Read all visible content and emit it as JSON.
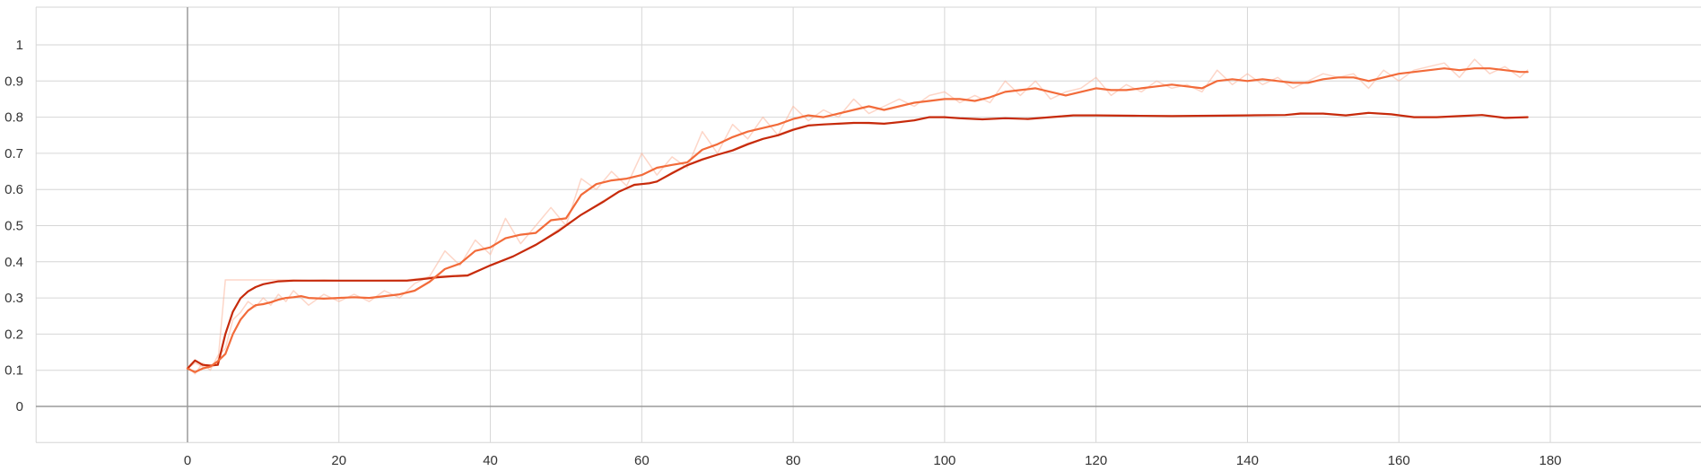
{
  "chart_data": {
    "type": "line",
    "title": "",
    "xlabel": "",
    "ylabel": "",
    "xlim": [
      -20,
      200
    ],
    "ylim": [
      -0.1,
      1.1
    ],
    "x_ticks": [
      "0",
      "20",
      "40",
      "60",
      "80",
      "100",
      "120",
      "140",
      "160",
      "180"
    ],
    "y_ticks": [
      "0",
      "0.1",
      "0.2",
      "0.3",
      "0.4",
      "0.5",
      "0.6",
      "0.7",
      "0.8",
      "0.9",
      "1"
    ],
    "grid": true,
    "legend": "none",
    "series": [
      {
        "color": "#c62a0b",
        "opacity": 1,
        "x": [
          0,
          1,
          2,
          3,
          4,
          5,
          6,
          7,
          8,
          9,
          10,
          11,
          12,
          14,
          16,
          18,
          20,
          25,
          29,
          31,
          33,
          35,
          37,
          40,
          43,
          46,
          49,
          52,
          55,
          57,
          59,
          61,
          62,
          64,
          66,
          68,
          70,
          72,
          74,
          76,
          78,
          80,
          82,
          84,
          86,
          88,
          90,
          92,
          94,
          96,
          98,
          100,
          102,
          105,
          108,
          111,
          114,
          117,
          120,
          125,
          130,
          135,
          140,
          145,
          147,
          150,
          153,
          156,
          159,
          162,
          165,
          168,
          171,
          174,
          177
        ],
        "y": [
          0.105,
          0.127,
          0.115,
          0.113,
          0.115,
          0.2,
          0.262,
          0.299,
          0.318,
          0.33,
          0.338,
          0.342,
          0.346,
          0.348,
          0.348,
          0.348,
          0.348,
          0.348,
          0.348,
          0.352,
          0.357,
          0.36,
          0.362,
          0.39,
          0.415,
          0.447,
          0.485,
          0.53,
          0.567,
          0.594,
          0.613,
          0.617,
          0.622,
          0.645,
          0.667,
          0.683,
          0.696,
          0.708,
          0.725,
          0.74,
          0.75,
          0.765,
          0.777,
          0.78,
          0.782,
          0.784,
          0.784,
          0.782,
          0.786,
          0.791,
          0.8,
          0.8,
          0.797,
          0.794,
          0.797,
          0.795,
          0.8,
          0.805,
          0.805,
          0.804,
          0.803,
          0.804,
          0.805,
          0.806,
          0.81,
          0.81,
          0.805,
          0.812,
          0.808,
          0.8,
          0.8,
          0.803,
          0.806,
          0.798,
          0.8
        ]
      },
      {
        "color": "#f26b3a",
        "opacity": 1,
        "x": [
          0,
          1,
          2,
          3,
          4,
          5,
          6,
          7,
          8,
          9,
          10,
          11,
          12,
          13,
          14,
          15,
          16,
          18,
          20,
          22,
          24,
          26,
          28,
          30,
          32,
          34,
          36,
          38,
          40,
          42,
          44,
          46,
          48,
          50,
          52,
          54,
          56,
          58,
          60,
          62,
          64,
          66,
          68,
          70,
          72,
          74,
          76,
          78,
          80,
          82,
          84,
          86,
          88,
          90,
          92,
          94,
          96,
          98,
          100,
          102,
          104,
          106,
          108,
          110,
          112,
          114,
          116,
          118,
          120,
          122,
          124,
          126,
          128,
          130,
          132,
          134,
          136,
          138,
          140,
          142,
          144,
          146,
          148,
          150,
          152,
          154,
          156,
          158,
          160,
          162,
          164,
          166,
          168,
          170,
          172,
          174,
          176,
          177
        ],
        "y": [
          0.105,
          0.095,
          0.105,
          0.11,
          0.125,
          0.145,
          0.2,
          0.24,
          0.265,
          0.28,
          0.283,
          0.288,
          0.295,
          0.3,
          0.302,
          0.305,
          0.3,
          0.298,
          0.3,
          0.302,
          0.3,
          0.305,
          0.31,
          0.32,
          0.345,
          0.38,
          0.395,
          0.43,
          0.44,
          0.465,
          0.475,
          0.48,
          0.515,
          0.52,
          0.585,
          0.615,
          0.625,
          0.63,
          0.64,
          0.66,
          0.668,
          0.675,
          0.71,
          0.725,
          0.745,
          0.76,
          0.77,
          0.78,
          0.795,
          0.805,
          0.8,
          0.81,
          0.82,
          0.83,
          0.82,
          0.83,
          0.84,
          0.845,
          0.85,
          0.85,
          0.845,
          0.855,
          0.87,
          0.875,
          0.88,
          0.87,
          0.86,
          0.87,
          0.88,
          0.875,
          0.875,
          0.88,
          0.885,
          0.89,
          0.885,
          0.88,
          0.9,
          0.905,
          0.9,
          0.905,
          0.9,
          0.895,
          0.895,
          0.905,
          0.91,
          0.91,
          0.9,
          0.91,
          0.92,
          0.925,
          0.93,
          0.935,
          0.93,
          0.935,
          0.935,
          0.93,
          0.925,
          0.925
        ]
      },
      {
        "color": "#fbb49a",
        "opacity": 0.55,
        "x": [
          0,
          1,
          2,
          3,
          4,
          5,
          6,
          10,
          14,
          16,
          18,
          20,
          25,
          29,
          31,
          33,
          35,
          37,
          40,
          43,
          46,
          49,
          52,
          55,
          57,
          59,
          61,
          62,
          64,
          66,
          68,
          70,
          72,
          74,
          76,
          78,
          80,
          82,
          84,
          86,
          88,
          90,
          92,
          94,
          96,
          98,
          100,
          102,
          105,
          108,
          111,
          114,
          117,
          120,
          125,
          130,
          135,
          140,
          145,
          147,
          150,
          153,
          156,
          159,
          162,
          165,
          168,
          171,
          174,
          177
        ],
        "y": [
          0.105,
          0.12,
          0.11,
          0.11,
          0.12,
          0.35,
          0.35,
          0.35,
          0.35,
          0.348,
          0.35,
          0.348,
          0.348,
          0.35,
          0.355,
          0.36,
          0.362,
          0.365,
          0.39,
          0.415,
          0.445,
          0.49,
          0.53,
          0.57,
          0.595,
          0.61,
          0.62,
          0.62,
          0.648,
          0.668,
          0.685,
          0.697,
          0.71,
          0.728,
          0.74,
          0.752,
          0.768,
          0.778,
          0.779,
          0.783,
          0.785,
          0.782,
          0.781,
          0.788,
          0.793,
          0.8,
          0.8,
          0.796,
          0.793,
          0.797,
          0.795,
          0.801,
          0.806,
          0.805,
          0.804,
          0.803,
          0.804,
          0.806,
          0.806,
          0.812,
          0.81,
          0.805,
          0.813,
          0.807,
          0.8,
          0.8,
          0.803,
          0.806,
          0.797,
          0.8
        ]
      },
      {
        "color": "#fbb49a",
        "opacity": 0.55,
        "x": [
          0,
          1,
          2,
          3,
          4,
          5,
          6,
          7,
          8,
          9,
          10,
          11,
          12,
          13,
          14,
          15,
          16,
          18,
          20,
          22,
          24,
          26,
          28,
          30,
          32,
          34,
          36,
          38,
          40,
          42,
          44,
          46,
          48,
          50,
          52,
          54,
          56,
          58,
          60,
          62,
          64,
          66,
          68,
          70,
          72,
          74,
          76,
          78,
          80,
          82,
          84,
          86,
          88,
          90,
          92,
          94,
          96,
          98,
          100,
          102,
          104,
          106,
          108,
          110,
          112,
          114,
          116,
          118,
          120,
          122,
          124,
          126,
          128,
          130,
          132,
          134,
          136,
          138,
          140,
          142,
          144,
          146,
          148,
          150,
          152,
          154,
          156,
          158,
          160,
          162,
          164,
          166,
          168,
          170,
          172,
          174,
          176,
          177
        ],
        "y": [
          0.11,
          0.09,
          0.12,
          0.1,
          0.14,
          0.16,
          0.24,
          0.26,
          0.29,
          0.275,
          0.3,
          0.28,
          0.31,
          0.29,
          0.32,
          0.3,
          0.28,
          0.31,
          0.29,
          0.31,
          0.29,
          0.32,
          0.3,
          0.34,
          0.36,
          0.43,
          0.39,
          0.46,
          0.42,
          0.52,
          0.45,
          0.5,
          0.55,
          0.5,
          0.63,
          0.6,
          0.65,
          0.61,
          0.7,
          0.64,
          0.69,
          0.66,
          0.76,
          0.7,
          0.78,
          0.74,
          0.8,
          0.75,
          0.83,
          0.79,
          0.82,
          0.8,
          0.85,
          0.81,
          0.83,
          0.85,
          0.83,
          0.86,
          0.87,
          0.84,
          0.86,
          0.84,
          0.9,
          0.86,
          0.9,
          0.85,
          0.87,
          0.88,
          0.91,
          0.86,
          0.89,
          0.87,
          0.9,
          0.88,
          0.89,
          0.87,
          0.93,
          0.89,
          0.92,
          0.89,
          0.91,
          0.88,
          0.9,
          0.92,
          0.91,
          0.92,
          0.88,
          0.93,
          0.9,
          0.93,
          0.94,
          0.95,
          0.91,
          0.96,
          0.92,
          0.94,
          0.91,
          0.93
        ]
      }
    ]
  }
}
